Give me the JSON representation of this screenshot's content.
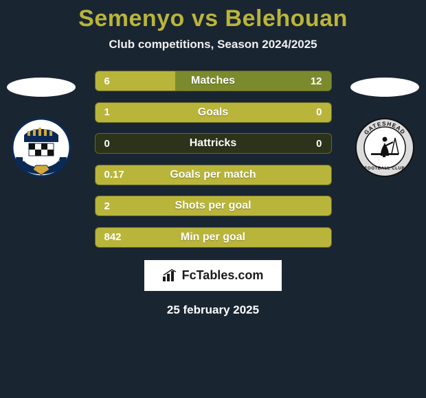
{
  "title_color": "#b9b53a",
  "background_color": "#1a2532",
  "player1": "Semenyo",
  "player2": "Belehouan",
  "subtitle": "Club competitions, Season 2024/2025",
  "date": "25 february 2025",
  "brand": "FcTables.com",
  "bar_colors": {
    "left": "#b9b53a",
    "right": "#7c8a2e",
    "empty": "#2b331a",
    "border": "#6a6a20"
  },
  "stats": [
    {
      "label": "Matches",
      "left_val": "6",
      "right_val": "12",
      "left_pct": 34,
      "right_pct": 66
    },
    {
      "label": "Goals",
      "left_val": "1",
      "right_val": "0",
      "left_pct": 100,
      "right_pct": 0
    },
    {
      "label": "Hattricks",
      "left_val": "0",
      "right_val": "0",
      "left_pct": 0,
      "right_pct": 0
    },
    {
      "label": "Goals per match",
      "left_val": "0.17",
      "right_val": "",
      "left_pct": 100,
      "right_pct": 0
    },
    {
      "label": "Shots per goal",
      "left_val": "2",
      "right_val": "",
      "left_pct": 100,
      "right_pct": 0
    },
    {
      "label": "Min per goal",
      "left_val": "842",
      "right_val": "",
      "left_pct": 100,
      "right_pct": 0
    }
  ],
  "crest_left": {
    "name": "Eastleigh",
    "bg": "#ffffff"
  },
  "crest_right": {
    "name": "Gateshead",
    "bg": "#d9d9d9"
  }
}
